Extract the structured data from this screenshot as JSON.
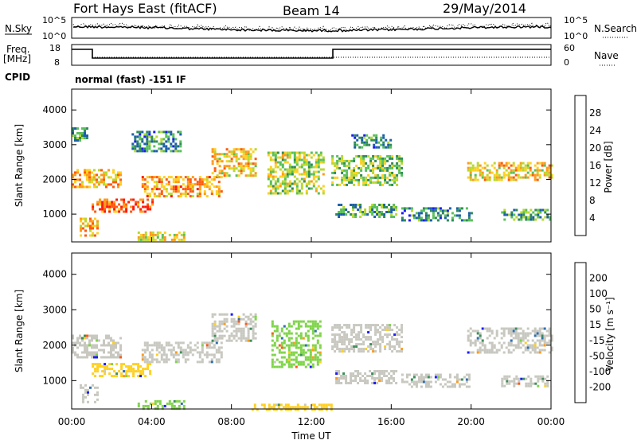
{
  "header": {
    "station": "Fort Hays East (fitACF)",
    "beam": "Beam 14",
    "date": "29/May/2014"
  },
  "status_panels": {
    "nsky": {
      "label": "N.Sky",
      "left_ticks": [
        "10^5",
        "10^0"
      ]
    },
    "nsearch": {
      "label": "N.Search",
      "right_ticks": [
        "10^5",
        "10^0"
      ]
    },
    "freq": {
      "label_line1": "Freq.",
      "label_line2": "[MHz]",
      "left_ticks": [
        "18",
        "8"
      ]
    },
    "nave": {
      "label": "Nave",
      "right_ticks": [
        "60",
        "0"
      ]
    },
    "cpid": {
      "label": "CPID",
      "value": "normal (fast) -151 IF"
    }
  },
  "chart_data": [
    {
      "type": "heatmap",
      "name": "power",
      "ylabel": "Slant Range [km]",
      "xlabel": "",
      "y_ticks": [
        "1000",
        "2000",
        "3000",
        "4000"
      ],
      "ylim": [
        200,
        4600
      ],
      "xlim": [
        0,
        24
      ],
      "colorbar": {
        "label": "Power [dB]",
        "ticks": [
          "4",
          "8",
          "12",
          "16",
          "20",
          "24",
          "28"
        ],
        "range": [
          0,
          32
        ],
        "colors": [
          "#1a1aff",
          "#1c5fa8",
          "#2e8b57",
          "#58c05a",
          "#b8d830",
          "#ffd020",
          "#ff9a1a",
          "#ff5a10",
          "#ff1a0a"
        ]
      },
      "echo_bands": [
        {
          "t0": 0.0,
          "t1": 2.5,
          "r0": 1750,
          "r1": 2300,
          "level": 22
        },
        {
          "t0": 1.0,
          "t1": 4.0,
          "r0": 1050,
          "r1": 1450,
          "level": 28
        },
        {
          "t0": 3.5,
          "t1": 7.5,
          "r0": 1500,
          "r1": 2100,
          "level": 24
        },
        {
          "t0": 7.0,
          "t1": 9.2,
          "r0": 2100,
          "r1": 2900,
          "level": 20
        },
        {
          "t0": 0.0,
          "t1": 0.8,
          "r0": 3100,
          "r1": 3500,
          "level": 10
        },
        {
          "t0": 3.0,
          "t1": 5.5,
          "r0": 2800,
          "r1": 3400,
          "level": 8
        },
        {
          "t0": 0.4,
          "t1": 1.3,
          "r0": 400,
          "r1": 900,
          "level": 22
        },
        {
          "t0": 3.3,
          "t1": 5.6,
          "r0": 250,
          "r1": 500,
          "level": 18
        },
        {
          "t0": 9.8,
          "t1": 12.6,
          "r0": 1600,
          "r1": 2800,
          "level": 16
        },
        {
          "t0": 13.0,
          "t1": 16.5,
          "r0": 1850,
          "r1": 2700,
          "level": 14
        },
        {
          "t0": 13.2,
          "t1": 16.2,
          "r0": 900,
          "r1": 1300,
          "level": 10
        },
        {
          "t0": 16.5,
          "t1": 20.0,
          "r0": 850,
          "r1": 1200,
          "level": 8
        },
        {
          "t0": 19.8,
          "t1": 24.0,
          "r0": 1950,
          "r1": 2500,
          "level": 20
        },
        {
          "t0": 21.5,
          "t1": 24.0,
          "r0": 850,
          "r1": 1150,
          "level": 10
        },
        {
          "t0": 14.0,
          "t1": 16.0,
          "r0": 2900,
          "r1": 3300,
          "level": 8
        }
      ]
    },
    {
      "type": "heatmap",
      "name": "velocity",
      "ylabel": "Slant Range [km]",
      "xlabel": "Time UT",
      "y_ticks": [
        "1000",
        "2000",
        "3000",
        "4000"
      ],
      "ylim": [
        200,
        4600
      ],
      "xlim": [
        0,
        24
      ],
      "x_ticks": [
        "00:00",
        "04:00",
        "08:00",
        "12:00",
        "16:00",
        "20:00",
        "00:00"
      ],
      "colorbar": {
        "label": "Velocity [m s⁻¹]",
        "ticks": [
          "200",
          "100",
          "50",
          "15",
          "-15",
          "-50",
          "-100",
          "-200"
        ],
        "colors": [
          "#1a1aff",
          "#2e6fb0",
          "#3c8f5a",
          "#7fd44a",
          "#c8c8c0",
          "#ffd020",
          "#ff9a1a",
          "#ff5a10",
          "#ff1a0a"
        ]
      },
      "echo_bands": [
        {
          "t0": 0.0,
          "t1": 2.5,
          "r0": 1650,
          "r1": 2300,
          "v": 0
        },
        {
          "t0": 1.0,
          "t1": 4.0,
          "r0": 1100,
          "r1": 1500,
          "v": -30
        },
        {
          "t0": 3.5,
          "t1": 7.5,
          "r0": 1500,
          "r1": 2100,
          "v": 0
        },
        {
          "t0": 7.0,
          "t1": 9.2,
          "r0": 2100,
          "r1": 2900,
          "v": 0
        },
        {
          "t0": 0.4,
          "t1": 1.3,
          "r0": 400,
          "r1": 900,
          "v": 0
        },
        {
          "t0": 3.3,
          "t1": 5.6,
          "r0": 200,
          "r1": 450,
          "v": 30
        },
        {
          "t0": 10.0,
          "t1": 12.4,
          "r0": 1400,
          "r1": 2700,
          "v": 40
        },
        {
          "t0": 13.0,
          "t1": 16.5,
          "r0": 1850,
          "r1": 2600,
          "v": 0
        },
        {
          "t0": 13.2,
          "t1": 16.2,
          "r0": 900,
          "r1": 1300,
          "v": 0
        },
        {
          "t0": 16.5,
          "t1": 20.0,
          "r0": 850,
          "r1": 1200,
          "v": 0
        },
        {
          "t0": 19.8,
          "t1": 24.0,
          "r0": 1800,
          "r1": 2500,
          "v": 0
        },
        {
          "t0": 21.5,
          "t1": 24.0,
          "r0": 850,
          "r1": 1150,
          "v": 0
        },
        {
          "t0": 9.0,
          "t1": 13.0,
          "r0": 200,
          "r1": 350,
          "v": -40
        }
      ]
    }
  ]
}
